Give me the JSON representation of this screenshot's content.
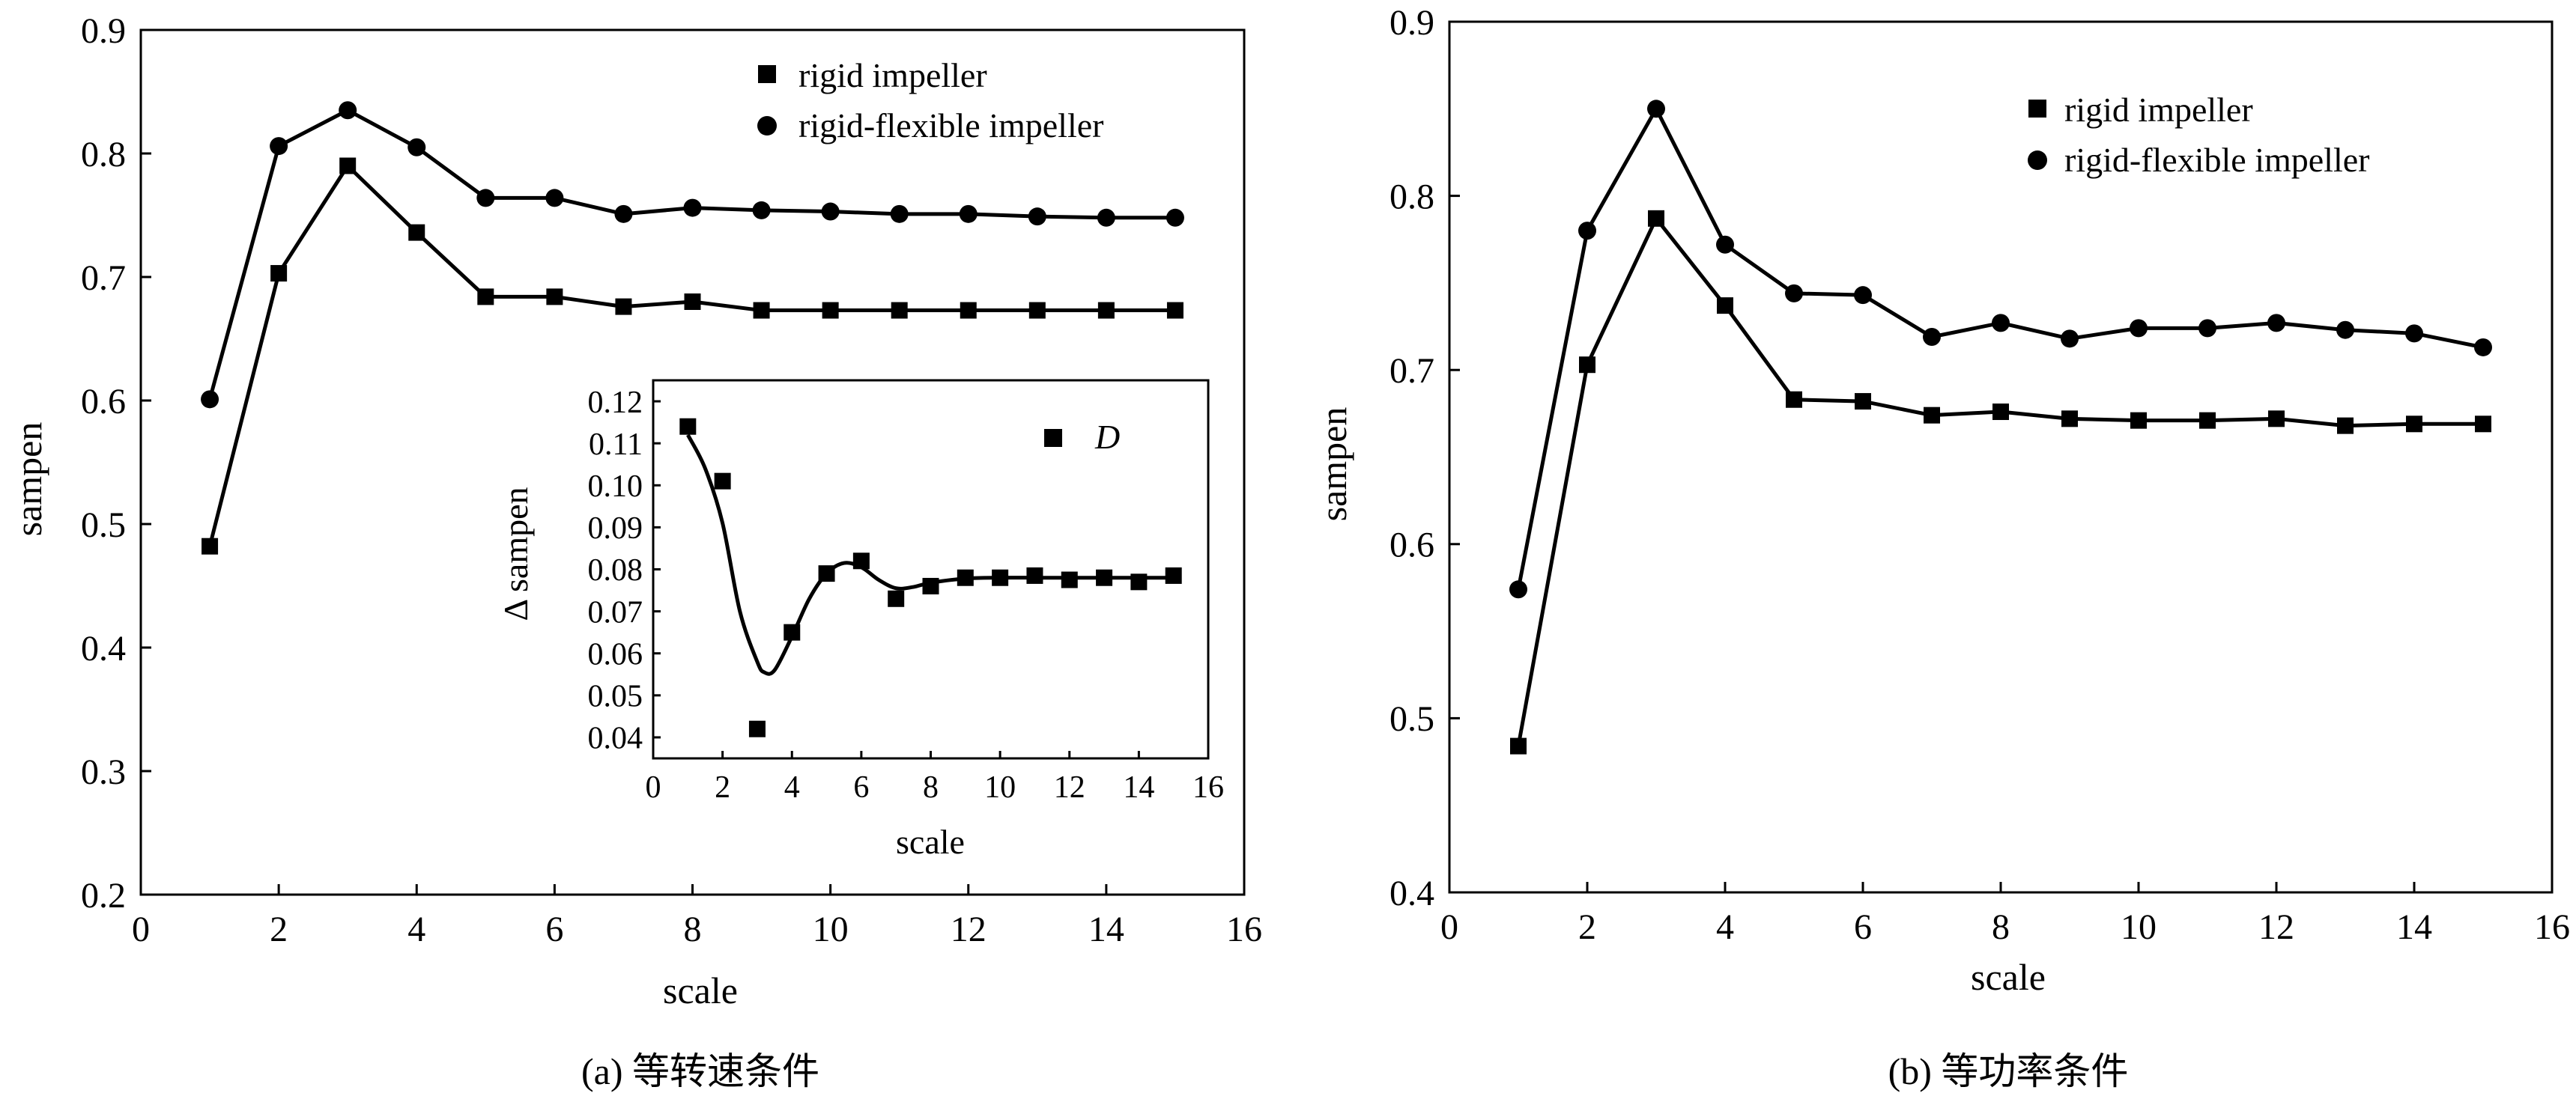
{
  "figure": {
    "captions": [
      "(a) 等转速条件",
      "(b) 等功率条件"
    ]
  },
  "chart_data": [
    {
      "type": "line",
      "panel": "a",
      "caption": "(a) 等转速条件",
      "xlabel": "scale",
      "ylabel": "sampen",
      "xlim": [
        0,
        16
      ],
      "ylim": [
        0.2,
        0.9
      ],
      "xticks": [
        0,
        2,
        4,
        6,
        8,
        10,
        12,
        14,
        16
      ],
      "yticks": [
        0.2,
        0.3,
        0.4,
        0.5,
        0.6,
        0.7,
        0.8,
        0.9
      ],
      "ytick_labels": [
        "0.2",
        "0.3",
        "0.4",
        "0.5",
        "0.6",
        "0.7",
        "0.8",
        "0.9"
      ],
      "legend_position": "top-right",
      "series": [
        {
          "name": "rigid impeller",
          "marker": "square",
          "x": [
            1,
            2,
            3,
            4,
            5,
            6,
            7,
            8,
            9,
            10,
            11,
            12,
            13,
            14,
            15
          ],
          "y": [
            0.482,
            0.703,
            0.79,
            0.736,
            0.684,
            0.684,
            0.676,
            0.68,
            0.673,
            0.673,
            0.673,
            0.673,
            0.673,
            0.673,
            0.673
          ]
        },
        {
          "name": "rigid-flexible impeller",
          "marker": "circle",
          "x": [
            1,
            2,
            3,
            4,
            5,
            6,
            7,
            8,
            9,
            10,
            11,
            12,
            13,
            14,
            15
          ],
          "y": [
            0.601,
            0.806,
            0.835,
            0.805,
            0.764,
            0.764,
            0.751,
            0.756,
            0.754,
            0.753,
            0.751,
            0.751,
            0.749,
            0.748,
            0.748
          ]
        }
      ],
      "inset": {
        "type": "scatter",
        "xlabel": "scale",
        "ylabel": "Δ sampen",
        "xlim": [
          0,
          16
        ],
        "ylim": [
          0.035,
          0.125
        ],
        "xticks": [
          0,
          2,
          4,
          6,
          8,
          10,
          12,
          14,
          16
        ],
        "yticks": [
          0.04,
          0.05,
          0.06,
          0.07,
          0.08,
          0.09,
          0.1,
          0.11,
          0.12
        ],
        "ytick_labels": [
          "0.04",
          "0.05",
          "0.06",
          "0.07",
          "0.08",
          "0.09",
          "0.10",
          "0.11",
          "0.12"
        ],
        "legend_position": "top-right",
        "series": [
          {
            "name": "D",
            "marker": "square",
            "x": [
              1,
              2,
              3,
              4,
              5,
              6,
              7,
              8,
              9,
              10,
              11,
              12,
              13,
              14,
              15
            ],
            "y": [
              0.114,
              0.101,
              0.042,
              0.065,
              0.079,
              0.082,
              0.073,
              0.076,
              0.078,
              0.078,
              0.0785,
              0.0775,
              0.078,
              0.077,
              0.0785
            ]
          }
        ],
        "fit_curve": {
          "x": [
            1,
            1.5,
            2,
            2.5,
            3,
            3.2,
            3.5,
            4,
            4.5,
            5,
            5.5,
            6,
            6.5,
            7,
            7.5,
            8,
            9,
            10,
            11,
            12,
            13,
            14,
            15
          ],
          "y": [
            0.112,
            0.104,
            0.091,
            0.07,
            0.058,
            0.0555,
            0.056,
            0.064,
            0.073,
            0.079,
            0.0815,
            0.0805,
            0.0775,
            0.0755,
            0.0758,
            0.0768,
            0.0778,
            0.078,
            0.078,
            0.078,
            0.078,
            0.078,
            0.078
          ]
        }
      }
    },
    {
      "type": "line",
      "panel": "b",
      "caption": "(b) 等功率条件",
      "xlabel": "scale",
      "ylabel": "sampen",
      "xlim": [
        0,
        16
      ],
      "ylim": [
        0.4,
        0.9
      ],
      "xticks": [
        0,
        2,
        4,
        6,
        8,
        10,
        12,
        14,
        16
      ],
      "yticks": [
        0.4,
        0.5,
        0.6,
        0.7,
        0.8,
        0.9
      ],
      "ytick_labels": [
        "0.4",
        "0.5",
        "0.6",
        "0.7",
        "0.8",
        "0.9"
      ],
      "legend_position": "top-right",
      "series": [
        {
          "name": "rigid impeller",
          "marker": "square",
          "x": [
            1,
            2,
            3,
            4,
            5,
            6,
            7,
            8,
            9,
            10,
            11,
            12,
            13,
            14,
            15
          ],
          "y": [
            0.484,
            0.703,
            0.787,
            0.737,
            0.683,
            0.682,
            0.674,
            0.676,
            0.672,
            0.671,
            0.671,
            0.672,
            0.668,
            0.669,
            0.669
          ]
        },
        {
          "name": "rigid-flexible impeller",
          "marker": "circle",
          "x": [
            1,
            2,
            3,
            4,
            5,
            6,
            7,
            8,
            9,
            10,
            11,
            12,
            13,
            14,
            15
          ],
          "y": [
            0.574,
            0.78,
            0.85,
            0.772,
            0.744,
            0.743,
            0.719,
            0.727,
            0.718,
            0.724,
            0.724,
            0.727,
            0.723,
            0.721,
            0.713
          ]
        }
      ]
    }
  ]
}
